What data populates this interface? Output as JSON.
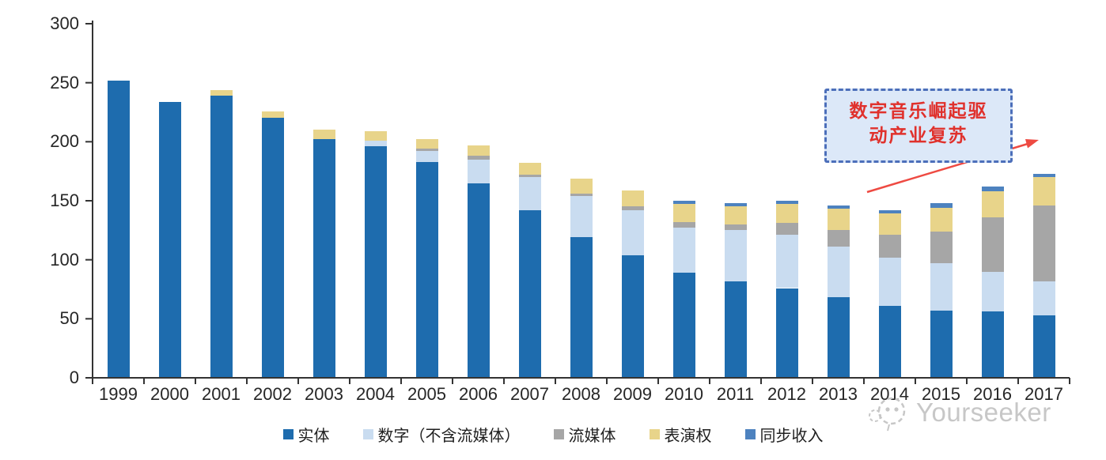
{
  "watermark": {
    "text": "Yourseeker"
  },
  "annotation": {
    "full_text": "数字音乐崛起驱动产业复苏",
    "lines": [
      "数字音乐崛起驱",
      "动产业复苏"
    ],
    "text_color": "#e0312c",
    "box_fill": "#dce8f8",
    "box_border_color": "#4c6fba",
    "arrow_color": "#ee4a42"
  },
  "chart_data": {
    "type": "bar",
    "stacked": true,
    "title": "",
    "xlabel": "",
    "ylabel": "",
    "ylim": [
      0,
      300
    ],
    "ytick_interval": 50,
    "yticks": [
      0,
      50,
      100,
      150,
      200,
      250,
      300
    ],
    "grid": false,
    "legend_position": "bottom",
    "axis_color": "#333333",
    "tick_label_color": "#262626",
    "categories": [
      "1999",
      "2000",
      "2001",
      "2002",
      "2003",
      "2004",
      "2005",
      "2006",
      "2007",
      "2008",
      "2009",
      "2010",
      "2011",
      "2012",
      "2013",
      "2014",
      "2015",
      "2016",
      "2017"
    ],
    "series": [
      {
        "name": "实体",
        "color": "#1e6cae",
        "values": [
          252,
          234,
          239,
          220,
          202,
          196,
          183,
          165,
          142,
          119,
          104,
          89,
          82,
          76,
          68,
          61,
          57,
          56,
          53
        ]
      },
      {
        "name": "数字（不含流媒体）",
        "color": "#c9dcf0",
        "values": [
          0,
          0,
          0,
          0,
          0,
          5,
          9,
          20,
          28,
          35,
          38,
          38,
          43,
          45,
          43,
          41,
          40,
          34,
          29
        ]
      },
      {
        "name": "流媒体",
        "color": "#a6a6a6",
        "values": [
          0,
          0,
          0,
          0,
          0,
          0,
          2,
          3,
          2,
          2,
          3,
          5,
          5,
          10,
          14,
          19,
          27,
          46,
          64
        ]
      },
      {
        "name": "表演权",
        "color": "#e8d48a",
        "values": [
          0,
          0,
          5,
          6,
          8,
          8,
          8,
          9,
          10,
          13,
          14,
          15,
          15,
          16,
          18,
          18,
          20,
          22,
          24
        ]
      },
      {
        "name": "同步收入",
        "color": "#4d82bf",
        "values": [
          0,
          0,
          0,
          0,
          0,
          0,
          0,
          0,
          0,
          0,
          0,
          3,
          3,
          3,
          3,
          3,
          4,
          4,
          3
        ]
      }
    ]
  }
}
